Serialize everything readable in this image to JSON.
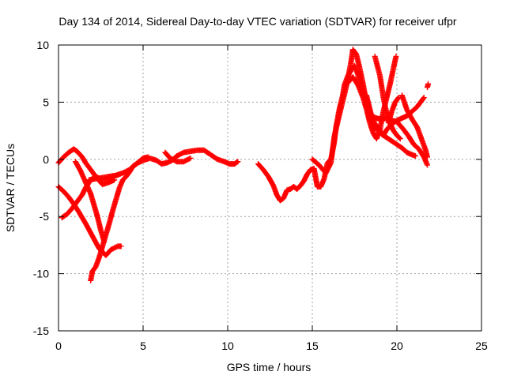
{
  "chart_data": {
    "type": "scatter",
    "title": "Day 134 of 2014, Sidereal Day-to-day VTEC variation (SDTVAR) for receiver ufpr",
    "xlabel": "GPS time / hours",
    "ylabel": "SDTVAR / TECUs",
    "xlim": [
      0,
      25
    ],
    "ylim": [
      -15,
      10
    ],
    "xticks": [
      0,
      5,
      10,
      15,
      20,
      25
    ],
    "yticks": [
      -15,
      -10,
      -5,
      0,
      5,
      10
    ],
    "grid": true,
    "marker": "+",
    "series": [
      {
        "name": "sdtvar",
        "color": "#ff0000",
        "polylines": [
          [
            [
              0.0,
              -0.3
            ],
            [
              0.3,
              0.2
            ],
            [
              0.6,
              0.6
            ],
            [
              0.9,
              0.9
            ],
            [
              1.1,
              0.7
            ],
            [
              1.4,
              0.2
            ],
            [
              1.6,
              -0.3
            ],
            [
              1.9,
              -0.9
            ],
            [
              2.2,
              -1.5
            ],
            [
              2.6,
              -2.2
            ],
            [
              3.0,
              -2.0
            ],
            [
              3.3,
              -1.8
            ]
          ],
          [
            [
              0.0,
              -2.4
            ],
            [
              0.3,
              -2.8
            ],
            [
              0.6,
              -3.3
            ],
            [
              0.9,
              -3.9
            ],
            [
              1.2,
              -4.6
            ],
            [
              1.6,
              -5.6
            ],
            [
              2.0,
              -6.7
            ],
            [
              2.4,
              -7.8
            ],
            [
              2.8,
              -8.4
            ],
            [
              3.1,
              -7.9
            ],
            [
              3.5,
              -7.6
            ],
            [
              3.7,
              -7.6
            ]
          ],
          [
            [
              0.2,
              -5.1
            ],
            [
              0.5,
              -4.8
            ],
            [
              0.8,
              -4.3
            ],
            [
              1.1,
              -3.7
            ],
            [
              1.4,
              -3.1
            ],
            [
              1.6,
              -2.5
            ],
            [
              1.9,
              -1.8
            ],
            [
              2.2,
              -1.5
            ],
            [
              2.6,
              -1.8
            ],
            [
              3.1,
              -1.6
            ],
            [
              3.6,
              -1.3
            ]
          ],
          [
            [
              1.0,
              -0.2
            ],
            [
              1.3,
              -1.0
            ],
            [
              1.6,
              -2.0
            ],
            [
              1.9,
              -3.0
            ],
            [
              2.1,
              -4.0
            ],
            [
              2.3,
              -5.0
            ],
            [
              2.5,
              -6.2
            ],
            [
              2.7,
              -7.2
            ]
          ],
          [
            [
              1.9,
              -10.6
            ],
            [
              2.0,
              -9.8
            ],
            [
              2.2,
              -9.4
            ],
            [
              2.4,
              -8.6
            ],
            [
              2.6,
              -7.6
            ],
            [
              2.8,
              -6.6
            ],
            [
              3.0,
              -5.6
            ],
            [
              3.2,
              -4.5
            ],
            [
              3.4,
              -3.5
            ],
            [
              3.6,
              -2.5
            ],
            [
              3.8,
              -1.8
            ],
            [
              4.0,
              -1.5
            ],
            [
              4.2,
              -1.1
            ],
            [
              4.4,
              -0.6
            ],
            [
              4.7,
              -0.3
            ],
            [
              5.0,
              -0.1
            ],
            [
              5.4,
              0.1
            ],
            [
              5.8,
              -0.1
            ],
            [
              6.1,
              -0.4
            ],
            [
              6.4,
              -0.3
            ],
            [
              6.7,
              -0.1
            ],
            [
              7.0,
              0.3
            ],
            [
              7.4,
              0.6
            ],
            [
              7.8,
              0.7
            ],
            [
              8.2,
              0.8
            ],
            [
              8.6,
              0.8
            ],
            [
              9.0,
              0.4
            ],
            [
              9.4,
              0.0
            ],
            [
              9.8,
              -0.2
            ],
            [
              10.1,
              -0.4
            ],
            [
              10.4,
              -0.4
            ],
            [
              10.6,
              -0.2
            ]
          ],
          [
            [
              1.8,
              -1.8
            ],
            [
              2.2,
              -1.7
            ],
            [
              2.6,
              -1.6
            ],
            [
              3.0,
              -1.5
            ],
            [
              3.4,
              -1.4
            ],
            [
              3.8,
              -1.2
            ],
            [
              4.2,
              -0.9
            ],
            [
              4.6,
              -0.4
            ],
            [
              5.0,
              0.1
            ],
            [
              5.3,
              0.2
            ]
          ],
          [
            [
              6.3,
              0.6
            ],
            [
              6.6,
              0.1
            ],
            [
              7.0,
              -0.2
            ],
            [
              7.4,
              -0.2
            ],
            [
              7.8,
              0.1
            ]
          ],
          [
            [
              11.8,
              -0.4
            ],
            [
              12.1,
              -0.9
            ],
            [
              12.4,
              -1.5
            ],
            [
              12.7,
              -2.3
            ],
            [
              12.9,
              -3.1
            ],
            [
              13.1,
              -3.6
            ],
            [
              13.3,
              -3.4
            ],
            [
              13.5,
              -2.7
            ],
            [
              13.7,
              -2.6
            ],
            [
              13.9,
              -2.4
            ],
            [
              14.1,
              -2.6
            ],
            [
              14.3,
              -2.3
            ],
            [
              14.5,
              -1.9
            ],
            [
              14.7,
              -1.3
            ],
            [
              14.9,
              -0.9
            ],
            [
              15.1,
              -0.8
            ],
            [
              15.2,
              -1.6
            ],
            [
              15.3,
              -2.4
            ],
            [
              15.5,
              -2.4
            ],
            [
              15.7,
              -1.7
            ],
            [
              15.9,
              -0.3
            ],
            [
              16.1,
              0.0
            ],
            [
              16.3,
              1.5
            ],
            [
              16.4,
              2.8
            ],
            [
              16.6,
              4.4
            ],
            [
              16.8,
              5.6
            ],
            [
              16.9,
              6.5
            ],
            [
              17.1,
              7.3
            ],
            [
              17.3,
              7.8
            ],
            [
              17.5,
              8.2
            ],
            [
              17.7,
              7.4
            ],
            [
              17.9,
              6.4
            ],
            [
              18.1,
              5.6
            ],
            [
              18.3,
              4.8
            ],
            [
              18.5,
              3.8
            ],
            [
              18.7,
              3.1
            ],
            [
              18.9,
              2.8
            ],
            [
              19.1,
              2.2
            ],
            [
              19.3,
              2.0
            ],
            [
              19.5,
              1.8
            ],
            [
              19.7,
              1.6
            ],
            [
              20.0,
              1.3
            ],
            [
              20.3,
              1.0
            ],
            [
              20.6,
              0.6
            ],
            [
              20.9,
              0.4
            ],
            [
              21.1,
              0.3
            ]
          ],
          [
            [
              15.0,
              0.0
            ],
            [
              15.4,
              -0.5
            ],
            [
              15.8,
              -1.2
            ],
            [
              16.1,
              -0.3
            ],
            [
              16.3,
              2.0
            ],
            [
              16.6,
              3.9
            ],
            [
              16.9,
              5.7
            ],
            [
              17.1,
              7.0
            ],
            [
              17.3,
              8.6
            ],
            [
              17.4,
              9.6
            ],
            [
              17.6,
              9.2
            ],
            [
              17.8,
              8.0
            ],
            [
              18.0,
              6.6
            ],
            [
              18.2,
              5.0
            ],
            [
              18.4,
              3.6
            ],
            [
              18.6,
              3.0
            ],
            [
              18.8,
              2.6
            ],
            [
              19.0,
              2.4
            ],
            [
              19.2,
              2.1
            ],
            [
              19.4,
              2.6
            ],
            [
              19.7,
              3.1
            ],
            [
              20.0,
              3.4
            ],
            [
              20.3,
              3.6
            ],
            [
              20.6,
              3.8
            ],
            [
              20.9,
              4.2
            ],
            [
              21.2,
              4.6
            ],
            [
              21.4,
              5.0
            ],
            [
              21.6,
              5.4
            ]
          ],
          [
            [
              17.1,
              6.7
            ],
            [
              17.4,
              7.2
            ],
            [
              17.7,
              6.5
            ],
            [
              18.0,
              5.4
            ],
            [
              18.2,
              4.4
            ],
            [
              18.4,
              3.2
            ],
            [
              18.6,
              2.3
            ],
            [
              18.8,
              1.8
            ],
            [
              19.0,
              2.6
            ],
            [
              19.2,
              4.2
            ],
            [
              19.4,
              5.4
            ],
            [
              19.6,
              6.6
            ],
            [
              19.8,
              8.0
            ],
            [
              19.95,
              9.0
            ]
          ],
          [
            [
              18.2,
              5.6
            ],
            [
              18.5,
              3.8
            ],
            [
              18.8,
              3.6
            ],
            [
              19.1,
              3.5
            ],
            [
              19.4,
              3.6
            ],
            [
              19.7,
              3.4
            ],
            [
              20.0,
              3.3
            ],
            [
              20.4,
              2.6
            ],
            [
              20.7,
              2.0
            ],
            [
              21.0,
              1.3
            ],
            [
              21.3,
              0.9
            ],
            [
              21.6,
              0.2
            ],
            [
              21.8,
              -0.5
            ]
          ],
          [
            [
              20.3,
              5.6
            ],
            [
              20.6,
              4.3
            ],
            [
              20.9,
              3.5
            ],
            [
              21.2,
              2.8
            ],
            [
              21.5,
              1.6
            ],
            [
              21.7,
              0.8
            ],
            [
              21.8,
              0.2
            ]
          ],
          [
            [
              18.7,
              9.0
            ],
            [
              19.0,
              7.3
            ],
            [
              19.2,
              5.4
            ],
            [
              19.4,
              4.0
            ],
            [
              19.6,
              3.1
            ],
            [
              19.8,
              2.5
            ],
            [
              20.0,
              2.1
            ],
            [
              20.2,
              1.8
            ]
          ],
          [
            [
              19.5,
              3.2
            ],
            [
              19.7,
              4.2
            ],
            [
              19.9,
              5.0
            ],
            [
              20.1,
              5.4
            ]
          ],
          [
            [
              21.8,
              6.3
            ],
            [
              21.85,
              6.6
            ]
          ]
        ]
      }
    ]
  }
}
